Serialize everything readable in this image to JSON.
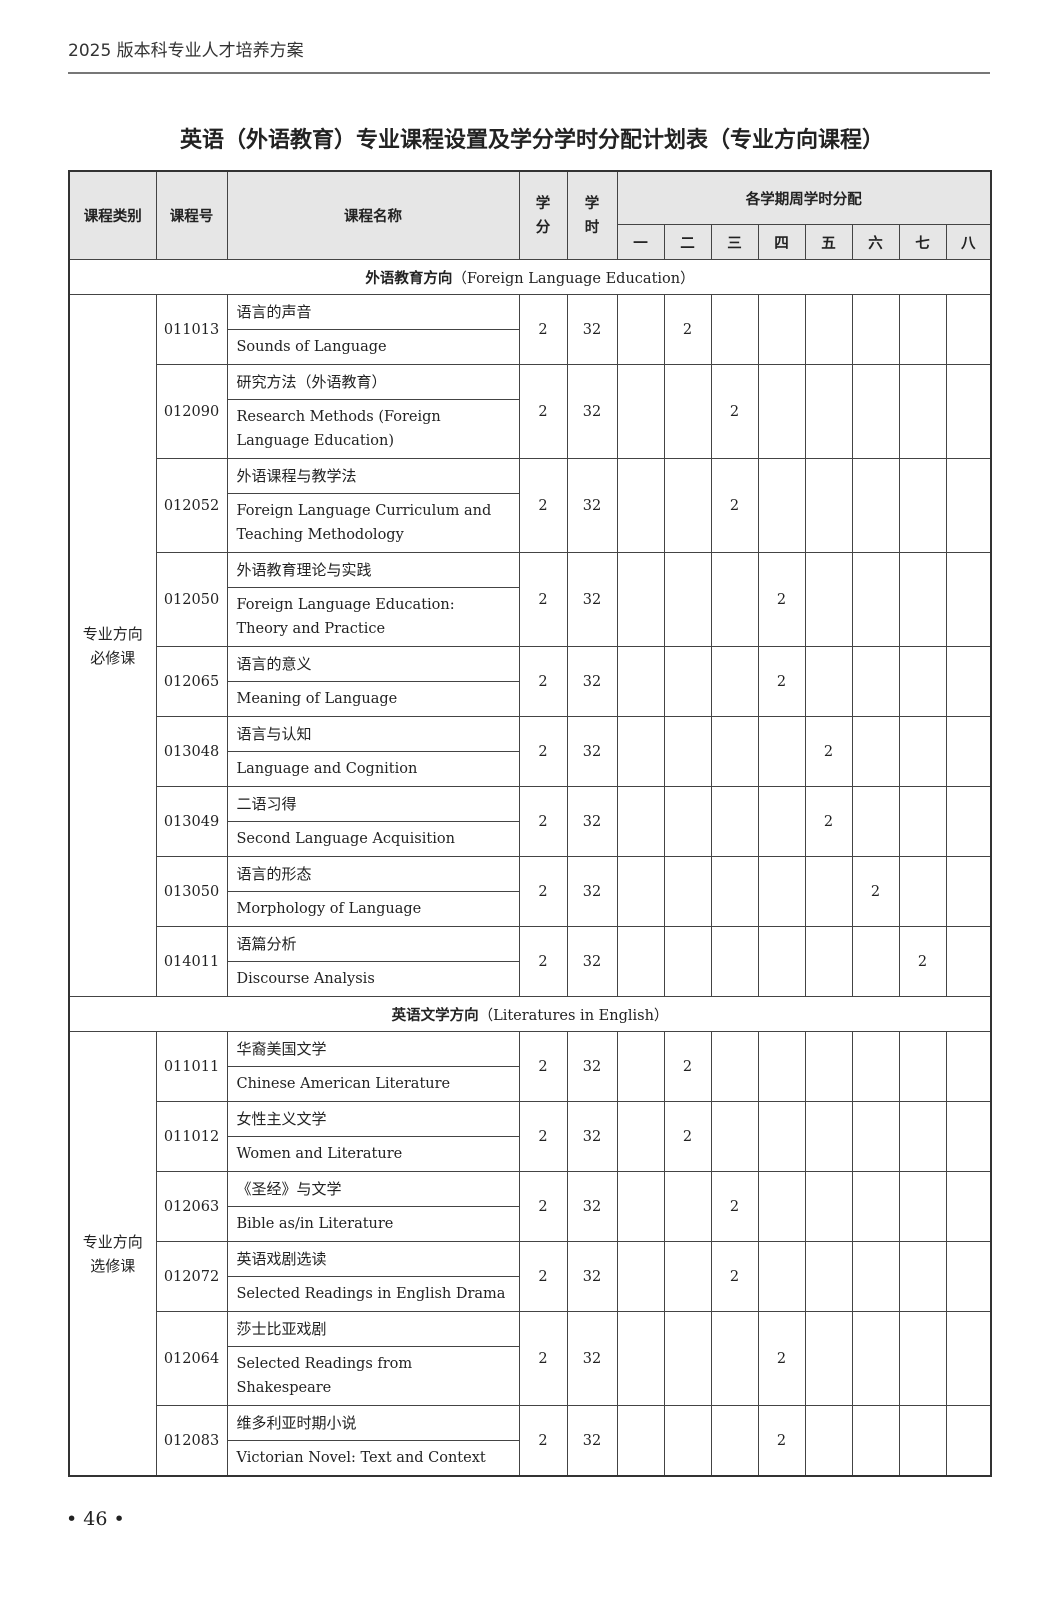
{
  "running_head": "2025 版本科专业人才培养方案",
  "title": "英语（外语教育）专业课程设置及学分学时分配计划表（专业方向课程）",
  "headers": {
    "category": "课程类别",
    "code": "课程号",
    "name": "课程名称",
    "credits": "学\n分",
    "hours": "学\n时",
    "semester_group": "各学期周学时分配",
    "semesters": [
      "一",
      "二",
      "三",
      "四",
      "五",
      "六",
      "七",
      "八"
    ]
  },
  "sections": [
    {
      "title_zh": "外语教育方向",
      "title_en": "（Foreign Language Education）",
      "category": "专业方向\n必修课",
      "courses": [
        {
          "code": "011013",
          "zh": "语言的声音",
          "en": "Sounds of Language",
          "credits": "2",
          "hours": "32",
          "semester": 2,
          "weekly": "2"
        },
        {
          "code": "012090",
          "zh": "研究方法（外语教育）",
          "en": "Research Methods (Foreign Language Education)",
          "credits": "2",
          "hours": "32",
          "semester": 3,
          "weekly": "2"
        },
        {
          "code": "012052",
          "zh": "外语课程与教学法",
          "en": "Foreign Language Curriculum and Teaching Methodology",
          "credits": "2",
          "hours": "32",
          "semester": 3,
          "weekly": "2"
        },
        {
          "code": "012050",
          "zh": "外语教育理论与实践",
          "en": "Foreign Language Education: Theory and Practice",
          "credits": "2",
          "hours": "32",
          "semester": 4,
          "weekly": "2"
        },
        {
          "code": "012065",
          "zh": "语言的意义",
          "en": "Meaning of Language",
          "credits": "2",
          "hours": "32",
          "semester": 4,
          "weekly": "2"
        },
        {
          "code": "013048",
          "zh": "语言与认知",
          "en": "Language and Cognition",
          "credits": "2",
          "hours": "32",
          "semester": 5,
          "weekly": "2"
        },
        {
          "code": "013049",
          "zh": "二语习得",
          "en": "Second Language Acquisition",
          "credits": "2",
          "hours": "32",
          "semester": 5,
          "weekly": "2"
        },
        {
          "code": "013050",
          "zh": "语言的形态",
          "en": "Morphology of Language",
          "credits": "2",
          "hours": "32",
          "semester": 6,
          "weekly": "2"
        },
        {
          "code": "014011",
          "zh": "语篇分析",
          "en": "Discourse Analysis",
          "credits": "2",
          "hours": "32",
          "semester": 7,
          "weekly": "2"
        }
      ]
    },
    {
      "title_zh": "英语文学方向",
      "title_en": "（Literatures in English）",
      "category": "专业方向\n选修课",
      "courses": [
        {
          "code": "011011",
          "zh": "华裔美国文学",
          "en": "Chinese American Literature",
          "credits": "2",
          "hours": "32",
          "semester": 2,
          "weekly": "2"
        },
        {
          "code": "011012",
          "zh": "女性主义文学",
          "en": "Women and Literature",
          "credits": "2",
          "hours": "32",
          "semester": 2,
          "weekly": "2"
        },
        {
          "code": "012063",
          "zh": "《圣经》与文学",
          "en": "Bible as/in Literature",
          "credits": "2",
          "hours": "32",
          "semester": 3,
          "weekly": "2"
        },
        {
          "code": "012072",
          "zh": "英语戏剧选读",
          "en": "Selected Readings in English Drama",
          "credits": "2",
          "hours": "32",
          "semester": 3,
          "weekly": "2"
        },
        {
          "code": "012064",
          "zh": "莎士比亚戏剧",
          "en": "Selected Readings from Shakespeare",
          "credits": "2",
          "hours": "32",
          "semester": 4,
          "weekly": "2"
        },
        {
          "code": "012083",
          "zh": "维多利亚时期小说",
          "en": "Victorian Novel: Text and Context",
          "credits": "2",
          "hours": "32",
          "semester": 4,
          "weekly": "2"
        }
      ]
    }
  ],
  "page_number": "• 46 •"
}
